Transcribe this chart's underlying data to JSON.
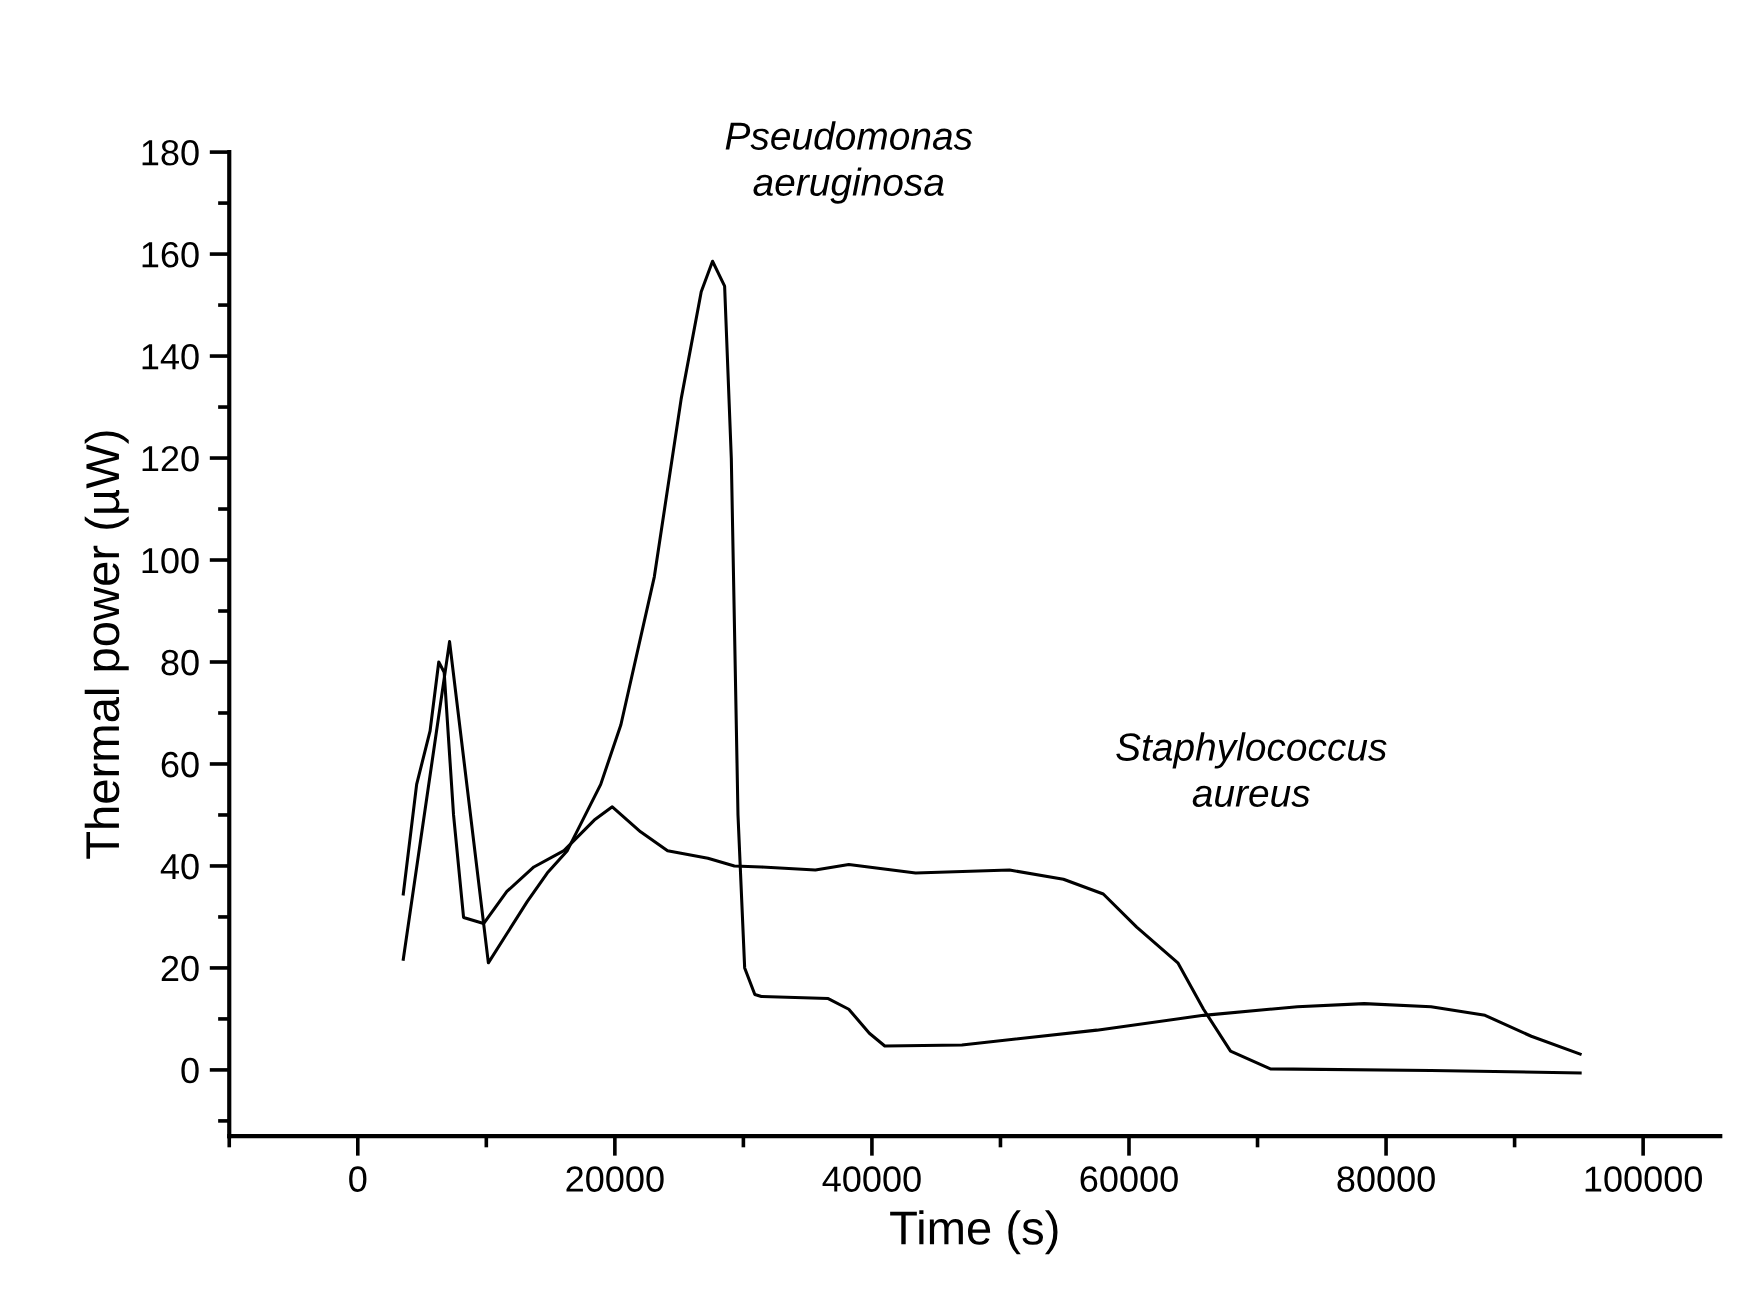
{
  "chart_data": {
    "type": "line",
    "xlabel": "Time (s)",
    "ylabel": "Thermal power (µW)",
    "xlim": [
      -10000,
      106000
    ],
    "xticks": [
      0,
      20000,
      40000,
      60000,
      80000,
      100000
    ],
    "ylim": [
      -13,
      180
    ],
    "yticks": [
      0,
      20,
      40,
      60,
      80,
      100,
      120,
      140,
      160,
      180
    ],
    "grid": false,
    "legend": false,
    "marker": "none",
    "line_style": "solid",
    "annotations": [
      "Pseudomonas\naeruginosa",
      "Staphylococcus\naureus"
    ],
    "series": [
      {
        "color": "#000000",
        "x": [
          3540,
          7140,
          10160,
          13180,
          14740,
          16300,
          18900,
          20470,
          23070,
          25160,
          26720,
          27600,
          28540,
          29060,
          29580,
          30100,
          30890,
          31400,
          36600,
          38200,
          39800,
          41000,
          47000,
          57500,
          65800,
          73100,
          78300,
          83500,
          87700,
          91300,
          95100
        ],
        "values": [
          21.7,
          84,
          21,
          33,
          38.6,
          43,
          56,
          67.7,
          96.7,
          131.6,
          152.6,
          158.6,
          153.7,
          120,
          50,
          20,
          14.8,
          14.4,
          14,
          11.9,
          7.2,
          4.7,
          4.9,
          7.8,
          10.7,
          12.4,
          13,
          12.4,
          10.7,
          6.6,
          3.1
        ]
      },
      {
        "color": "#000000",
        "x": [
          3540,
          4580,
          5625,
          6300,
          6720,
          7450,
          8230,
          9790,
          11600,
          13700,
          16040,
          18400,
          19800,
          22000,
          24100,
          27240,
          29300,
          31400,
          35600,
          38200,
          43400,
          50700,
          54900,
          58000,
          60600,
          63800,
          65800,
          67900,
          71000,
          83500,
          95100
        ],
        "values": [
          34.5,
          56,
          66.5,
          80,
          78,
          50,
          29.9,
          28.7,
          35,
          39.8,
          43,
          49,
          51.6,
          46.7,
          43,
          41.5,
          40,
          39.8,
          39.2,
          40.3,
          38.6,
          39.2,
          37.4,
          34.5,
          28,
          21,
          11.9,
          3.7,
          0.2,
          -0.1,
          -0.6
        ]
      }
    ]
  }
}
